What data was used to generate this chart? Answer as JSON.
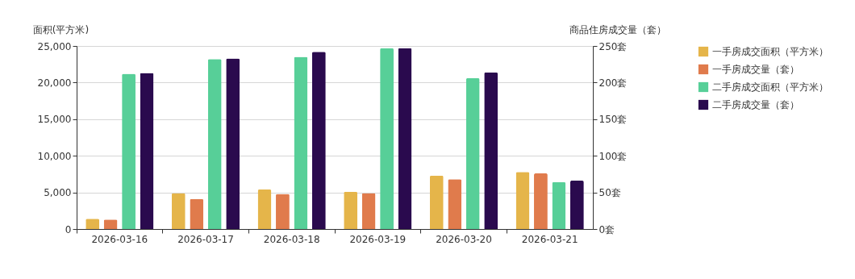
{
  "chart_data": {
    "type": "bar",
    "xlabel": null,
    "ylabel": "面积(平方米)",
    "y2label": "商品住房成交量（套）",
    "categories": [
      "2026-03-16",
      "2026-03-17",
      "2026-03-18",
      "2026-03-19",
      "2026-03-20",
      "2026-03-21"
    ],
    "series": [
      {
        "name": "一手房成交面积（平方米）",
        "color": "#e5b54a",
        "values": [
          1400,
          4900,
          5400,
          5100,
          7300,
          7800
        ]
      },
      {
        "name": "一手房成交量（套）",
        "color": "#e07b4c",
        "axis": "y2",
        "values": [
          13,
          41,
          48,
          49,
          68,
          76
        ]
      },
      {
        "name": "二手房成交面积（平方米）",
        "color": "#57cf98",
        "values": [
          21200,
          23200,
          23500,
          24700,
          20600,
          6400
        ]
      },
      {
        "name": "二手房成交量（套）",
        "color": "#2a0a4e",
        "axis": "y2",
        "values": [
          213,
          233,
          242,
          247,
          214,
          66
        ]
      }
    ],
    "ylim": [
      0,
      25000
    ],
    "yticks": [
      {
        "value": 0,
        "label": "0"
      },
      {
        "value": 5000,
        "label": "5,000"
      },
      {
        "value": 10000,
        "label": "10,000"
      },
      {
        "value": 15000,
        "label": "15,000"
      },
      {
        "value": 20000,
        "label": "20,000"
      },
      {
        "value": 25000,
        "label": "25,000"
      }
    ],
    "y2lim": [
      0,
      250
    ],
    "y2ticks": [
      {
        "value": 0,
        "label": "0套"
      },
      {
        "value": 50,
        "label": "50套"
      },
      {
        "value": 100,
        "label": "100套"
      },
      {
        "value": 150,
        "label": "150套"
      },
      {
        "value": 200,
        "label": "200套"
      },
      {
        "value": 250,
        "label": "250套"
      }
    ],
    "grid": "y",
    "legend": "right"
  }
}
